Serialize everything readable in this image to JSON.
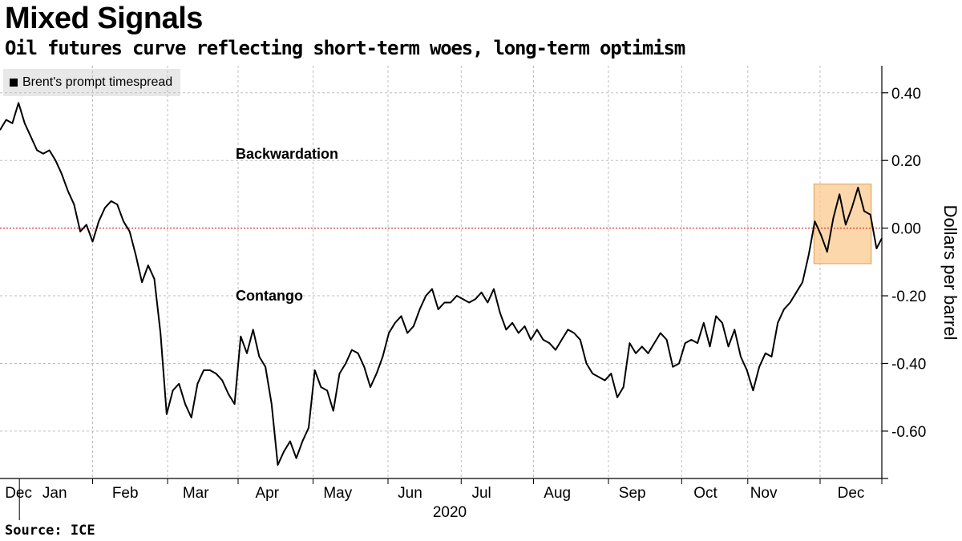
{
  "header": {
    "title": "Mixed Signals",
    "subtitle": "Oil futures curve reflecting short-term woes, long-term optimism"
  },
  "footer": {
    "source": "Source: ICE"
  },
  "colors": {
    "line": "#000000",
    "zero_line": "#e03131",
    "highlight_fill": "#f9c98f",
    "highlight_stroke": "#e0a050",
    "grid": "#bdbdbd"
  },
  "chart_data": {
    "type": "line",
    "title": "Mixed Signals",
    "subtitle": "Oil futures curve reflecting short-term woes, long-term optimism",
    "ylabel": "Dollars per barrel",
    "xlabel": "",
    "ylim": [
      -0.74,
      0.48
    ],
    "y_ticks": [
      0.4,
      0.2,
      0.0,
      -0.2,
      -0.4,
      -0.6
    ],
    "y_tick_labels": [
      "0.40",
      "0.20",
      "0.00",
      "-0.20",
      "-0.40",
      "-0.60"
    ],
    "x_tick_labels": [
      "Dec",
      "Jan",
      "Feb",
      "Mar",
      "Apr",
      "May",
      "Jun",
      "Jul",
      "Aug",
      "Sep",
      "Oct",
      "Nov",
      "Dec"
    ],
    "x_year_label": "2020",
    "grid": true,
    "legend_placement": "top-left",
    "series": [
      {
        "name": "Brent's prompt timespread",
        "t": [
          0,
          0.007,
          0.014,
          0.021,
          0.028,
          0.035,
          0.042,
          0.049,
          0.056,
          0.063,
          0.07,
          0.077,
          0.084,
          0.091,
          0.098,
          0.105,
          0.112,
          0.119,
          0.126,
          0.133,
          0.14,
          0.147,
          0.154,
          0.161,
          0.168,
          0.175,
          0.182,
          0.189,
          0.196,
          0.203,
          0.21,
          0.217,
          0.224,
          0.231,
          0.238,
          0.245,
          0.252,
          0.259,
          0.266,
          0.273,
          0.28,
          0.287,
          0.294,
          0.301,
          0.308,
          0.315,
          0.322,
          0.329,
          0.336,
          0.343,
          0.35,
          0.357,
          0.364,
          0.371,
          0.378,
          0.385,
          0.392,
          0.399,
          0.406,
          0.413,
          0.42,
          0.427,
          0.434,
          0.441,
          0.448,
          0.455,
          0.462,
          0.469,
          0.476,
          0.483,
          0.49,
          0.497,
          0.504,
          0.511,
          0.518,
          0.525,
          0.532,
          0.539,
          0.546,
          0.553,
          0.56,
          0.567,
          0.574,
          0.581,
          0.588,
          0.595,
          0.602,
          0.609,
          0.616,
          0.623,
          0.63,
          0.637,
          0.644,
          0.651,
          0.658,
          0.665,
          0.672,
          0.679,
          0.686,
          0.693,
          0.7,
          0.707,
          0.714,
          0.721,
          0.728,
          0.735,
          0.742,
          0.749,
          0.756,
          0.763,
          0.77,
          0.777,
          0.784,
          0.791,
          0.798,
          0.805,
          0.812,
          0.819,
          0.826,
          0.833,
          0.84,
          0.847,
          0.854,
          0.861,
          0.868,
          0.875,
          0.882,
          0.889,
          0.896,
          0.903,
          0.91,
          0.917,
          0.924,
          0.931,
          0.938,
          0.945,
          0.952,
          0.959,
          0.966,
          0.973,
          0.98,
          0.987,
          0.994,
          1.0
        ],
        "values": [
          0.29,
          0.32,
          0.31,
          0.37,
          0.31,
          0.27,
          0.23,
          0.22,
          0.23,
          0.2,
          0.16,
          0.11,
          0.07,
          -0.01,
          0.01,
          -0.04,
          0.02,
          0.06,
          0.08,
          0.07,
          0.02,
          -0.01,
          -0.08,
          -0.16,
          -0.11,
          -0.15,
          -0.31,
          -0.55,
          -0.48,
          -0.46,
          -0.52,
          -0.56,
          -0.46,
          -0.42,
          -0.42,
          -0.43,
          -0.45,
          -0.49,
          -0.52,
          -0.32,
          -0.37,
          -0.3,
          -0.38,
          -0.41,
          -0.52,
          -0.7,
          -0.66,
          -0.63,
          -0.68,
          -0.63,
          -0.59,
          -0.42,
          -0.47,
          -0.48,
          -0.54,
          -0.43,
          -0.4,
          -0.36,
          -0.37,
          -0.41,
          -0.47,
          -0.43,
          -0.38,
          -0.31,
          -0.28,
          -0.26,
          -0.31,
          -0.29,
          -0.24,
          -0.2,
          -0.18,
          -0.24,
          -0.22,
          -0.22,
          -0.2,
          -0.21,
          -0.22,
          -0.21,
          -0.19,
          -0.22,
          -0.18,
          -0.25,
          -0.3,
          -0.28,
          -0.31,
          -0.29,
          -0.33,
          -0.3,
          -0.33,
          -0.34,
          -0.36,
          -0.33,
          -0.3,
          -0.31,
          -0.33,
          -0.4,
          -0.43,
          -0.44,
          -0.45,
          -0.43,
          -0.5,
          -0.47,
          -0.34,
          -0.37,
          -0.35,
          -0.37,
          -0.34,
          -0.31,
          -0.33,
          -0.41,
          -0.4,
          -0.34,
          -0.33,
          -0.34,
          -0.28,
          -0.35,
          -0.26,
          -0.28,
          -0.35,
          -0.3,
          -0.38,
          -0.42,
          -0.48,
          -0.41,
          -0.37,
          -0.38,
          -0.28,
          -0.24,
          -0.22,
          -0.19,
          -0.16,
          -0.08,
          0.02,
          -0.02,
          -0.07,
          0.03,
          0.1,
          0.01,
          0.06,
          0.12,
          0.05,
          0.04,
          -0.06,
          -0.03
        ]
      }
    ],
    "annotations": [
      {
        "text": "Backwardation",
        "x": 0.28,
        "y": 0.22
      },
      {
        "text": "Contango",
        "x": 0.28,
        "y": -0.2
      }
    ],
    "reference_line": {
      "y": 0.0,
      "style": "dotted",
      "color": "#e03131"
    },
    "highlight_region": {
      "x_from": 0.923,
      "x_to": 0.988,
      "y_from": -0.105,
      "y_to": 0.13
    }
  }
}
